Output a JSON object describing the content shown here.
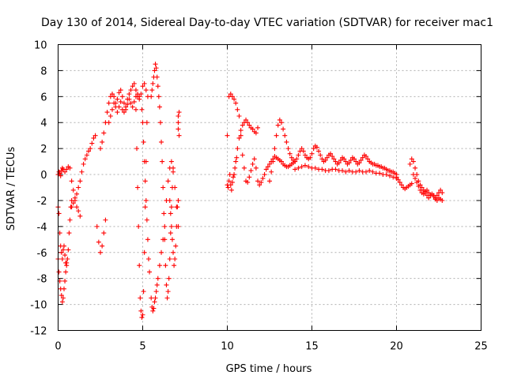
{
  "chart_data": {
    "type": "scatter",
    "title": "Day 130 of 2014, Sidereal Day-to-day VTEC variation (SDTVAR) for receiver mac1",
    "xlabel": "GPS time / hours",
    "ylabel": "SDTVAR / TECUs",
    "xlim": [
      0,
      25
    ],
    "ylim": [
      -12,
      10
    ],
    "xticks": [
      0,
      5,
      10,
      15,
      20,
      25
    ],
    "yticks": [
      -12,
      -10,
      -8,
      -6,
      -4,
      -2,
      0,
      2,
      4,
      6,
      8,
      10
    ],
    "xtick_labels": [
      "0",
      "5",
      "10",
      "15",
      "20",
      "25"
    ],
    "ytick_labels": [
      "-12",
      "-10",
      "-8",
      "-6",
      "-4",
      "-2",
      "0",
      "2",
      "4",
      "6",
      "8",
      "10"
    ],
    "grid": true,
    "marker": "plus",
    "color": "#ff0000",
    "series": [
      {
        "name": "SDTVAR",
        "x": [
          0.0,
          0.05,
          0.1,
          0.15,
          0.2,
          0.25,
          0.3,
          0.35,
          0.4,
          0.45,
          0.5,
          0.55,
          0.6,
          0.65,
          0.7,
          0.75,
          0.8,
          0.0,
          0.05,
          0.1,
          0.15,
          0.2,
          0.25,
          0.3,
          0.35,
          0.4,
          0.45,
          0.5,
          0.0,
          0.05,
          0.1,
          0.15,
          0.2,
          0.25,
          0.3,
          0.4,
          0.5,
          0.6,
          0.7,
          0.8,
          0.9,
          1.0,
          1.1,
          1.2,
          1.3,
          0.8,
          0.9,
          1.0,
          1.1,
          1.2,
          1.3,
          1.4,
          1.5,
          1.6,
          1.7,
          1.8,
          1.9,
          2.0,
          2.1,
          2.2,
          2.3,
          2.4,
          2.5,
          2.6,
          2.7,
          2.8,
          2.5,
          2.6,
          2.7,
          2.8,
          2.9,
          3.0,
          3.1,
          3.2,
          3.3,
          3.4,
          3.5,
          3.6,
          3.7,
          3.8,
          3.9,
          4.0,
          4.1,
          4.2,
          4.3,
          4.4,
          4.5,
          4.6,
          4.7,
          4.8,
          4.9,
          5.0,
          5.1,
          5.2,
          3.0,
          3.1,
          3.2,
          3.3,
          3.4,
          3.5,
          3.6,
          3.7,
          3.8,
          3.9,
          4.0,
          4.1,
          4.2,
          4.3,
          4.4,
          4.5,
          4.6,
          4.7,
          4.8,
          4.6,
          4.65,
          4.7,
          4.75,
          4.8,
          4.85,
          4.9,
          4.95,
          5.0,
          5.05,
          5.1,
          5.15,
          5.2,
          5.25,
          5.3,
          4.95,
          5.0,
          5.05,
          5.1,
          5.15,
          5.2,
          5.25,
          5.3,
          5.35,
          5.4,
          5.5,
          5.55,
          5.6,
          5.65,
          5.7,
          5.75,
          5.8,
          5.85,
          5.9,
          5.95,
          6.0,
          6.05,
          6.1,
          6.15,
          6.2,
          6.25,
          6.3,
          6.35,
          6.4,
          6.45,
          6.5,
          6.55,
          6.6,
          6.65,
          6.7,
          6.75,
          6.8,
          5.5,
          5.55,
          5.6,
          5.65,
          5.7,
          5.75,
          5.8,
          5.85,
          5.9,
          6.0,
          6.1,
          6.2,
          6.3,
          6.4,
          6.5,
          6.6,
          6.7,
          6.8,
          6.9,
          7.0,
          7.1,
          6.6,
          6.65,
          6.7,
          6.75,
          6.8,
          6.85,
          6.9,
          6.95,
          7.0,
          7.05,
          7.1,
          7.1,
          7.1,
          7.1,
          7.15,
          7.15,
          10.0,
          10.05,
          10.1,
          10.15,
          10.2,
          10.25,
          10.3,
          10.35,
          10.4,
          10.45,
          10.5,
          10.55,
          10.6,
          10.7,
          10.8,
          10.9,
          11.0,
          11.1,
          11.2,
          11.3,
          11.4,
          11.5,
          11.6,
          11.7,
          11.8,
          10.0,
          10.1,
          10.2,
          10.3,
          10.4,
          10.5,
          10.6,
          10.7,
          10.8,
          10.9,
          11.0,
          11.1,
          11.2,
          11.3,
          11.4,
          11.5,
          11.6,
          11.7,
          11.8,
          11.9,
          12.0,
          12.1,
          12.2,
          12.3,
          12.4,
          12.5,
          12.6,
          12.7,
          12.8,
          12.9,
          13.0,
          13.1,
          13.2,
          13.3,
          13.4,
          13.5,
          13.6,
          13.7,
          13.8,
          13.9,
          14.0,
          12.5,
          12.6,
          12.7,
          12.8,
          12.9,
          13.0,
          13.1,
          13.2,
          13.3,
          13.4,
          13.5,
          13.6,
          13.7,
          13.8,
          13.9,
          14.0,
          14.1,
          14.2,
          14.3,
          14.4,
          14.5,
          14.6,
          14.7,
          14.8,
          14.9,
          15.0,
          15.1,
          15.2,
          15.3,
          15.4,
          15.5,
          15.6,
          15.7,
          15.8,
          15.9,
          16.0,
          16.1,
          16.2,
          16.3,
          16.4,
          16.5,
          16.6,
          16.7,
          16.8,
          16.9,
          17.0,
          17.1,
          17.2,
          17.3,
          17.4,
          17.5,
          17.6,
          17.7,
          17.8,
          17.9,
          18.0,
          18.1,
          18.2,
          18.3,
          18.4,
          18.5,
          18.6,
          18.7,
          18.8,
          18.9,
          19.0,
          19.1,
          19.2,
          19.3,
          19.4,
          19.5,
          19.6,
          19.7,
          19.8,
          19.9,
          20.0,
          14.0,
          14.2,
          14.4,
          14.6,
          14.8,
          15.0,
          15.2,
          15.4,
          15.6,
          15.8,
          16.0,
          16.2,
          16.4,
          16.6,
          16.8,
          17.0,
          17.2,
          17.4,
          17.6,
          17.8,
          18.0,
          18.2,
          18.4,
          18.6,
          18.8,
          19.0,
          19.2,
          19.4,
          19.6,
          19.8,
          20.0,
          20.0,
          20.1,
          20.2,
          20.3,
          20.4,
          20.5,
          20.6,
          20.7,
          20.8,
          20.9,
          21.0,
          21.1,
          21.2,
          21.3,
          21.4,
          21.5,
          21.6,
          21.7,
          21.8,
          21.9,
          22.0,
          22.1,
          22.2,
          22.3,
          22.4,
          22.5,
          22.6,
          22.7,
          20.8,
          20.9,
          21.0,
          21.1,
          21.2,
          21.3,
          21.4,
          21.5,
          21.6,
          21.7,
          21.8,
          21.9,
          22.0,
          22.1,
          22.2,
          22.3,
          22.4,
          22.5,
          22.6,
          22.7
        ],
        "y": [
          -2.5,
          -3.0,
          -4.5,
          -5.5,
          -6.0,
          -6.5,
          -5.8,
          -5.5,
          -6.2,
          -6.8,
          -7.0,
          -6.5,
          -5.8,
          -4.5,
          -3.5,
          -2.5,
          -2.0,
          -6.5,
          -7.5,
          -8.2,
          -8.8,
          -9.3,
          -9.8,
          -9.5,
          -8.8,
          -8.2,
          -7.5,
          -6.8,
          0.0,
          0.2,
          0.1,
          -0.1,
          0.3,
          0.5,
          0.4,
          0.2,
          0.4,
          0.6,
          0.5,
          -0.5,
          -1.2,
          -2.0,
          -2.5,
          -2.8,
          -3.2,
          -2.5,
          -2.2,
          -1.8,
          -1.5,
          -1.0,
          -0.5,
          0.2,
          0.8,
          1.2,
          1.5,
          1.8,
          2.0,
          2.4,
          2.8,
          3.0,
          -4.0,
          -5.2,
          -6.0,
          -5.5,
          -4.5,
          -3.5,
          2.0,
          2.5,
          3.2,
          4.0,
          4.8,
          5.5,
          6.0,
          6.2,
          6.0,
          5.5,
          5.8,
          6.3,
          6.5,
          6.0,
          5.5,
          5.2,
          5.8,
          6.2,
          6.5,
          6.8,
          7.0,
          6.5,
          6.0,
          5.8,
          6.2,
          6.8,
          7.0,
          6.5,
          4.0,
          4.5,
          5.0,
          5.5,
          5.2,
          4.8,
          5.2,
          5.6,
          5.0,
          4.8,
          5.0,
          5.4,
          5.8,
          5.5,
          5.2,
          5.6,
          6.0,
          6.2,
          6.0,
          5.0,
          2.0,
          -1.0,
          -4.0,
          -7.0,
          -9.5,
          -10.5,
          -11.0,
          -10.8,
          -9.0,
          -6.0,
          -2.5,
          1.0,
          4.0,
          6.0,
          5.0,
          4.0,
          2.5,
          1.0,
          -0.5,
          -2.0,
          -3.5,
          -5.0,
          -6.5,
          -7.5,
          6.0,
          6.5,
          7.0,
          7.5,
          8.0,
          8.5,
          8.2,
          7.5,
          6.8,
          6.0,
          5.2,
          4.0,
          2.5,
          1.0,
          -1.0,
          -3.0,
          -5.0,
          -7.0,
          -8.5,
          -9.5,
          -9.0,
          -8.0,
          -6.5,
          -4.5,
          -2.5,
          -1.0,
          0.2,
          -9.5,
          -10.2,
          -10.5,
          -10.3,
          -9.8,
          -9.5,
          -9.0,
          -8.5,
          -8.0,
          -7.0,
          -6.0,
          -5.0,
          -4.0,
          -2.0,
          -0.5,
          0.5,
          1.0,
          0.5,
          -1.0,
          -2.5,
          -4.0,
          -2.0,
          -3.0,
          -4.0,
          -5.0,
          -6.0,
          -7.0,
          -6.5,
          -5.5,
          -4.0,
          -2.5,
          -2.0,
          4.5,
          4.0,
          3.5,
          4.8,
          3.0,
          -0.8,
          -1.0,
          -0.5,
          0.0,
          -0.8,
          -1.2,
          -0.6,
          -0.2,
          0.0,
          0.5,
          1.0,
          1.3,
          2.0,
          2.8,
          3.4,
          3.8,
          4.0,
          4.2,
          4.0,
          3.8,
          3.6,
          3.5,
          3.3,
          3.2,
          3.6,
          3.0,
          6.0,
          6.2,
          6.0,
          5.8,
          5.5,
          5.0,
          4.5,
          3.0,
          1.5,
          0.5,
          -0.5,
          -0.6,
          -0.2,
          0.3,
          0.8,
          1.2,
          0.5,
          -0.5,
          -0.8,
          -0.6,
          -0.3,
          0.0,
          0.4,
          0.6,
          0.8,
          1.0,
          1.2,
          1.4,
          1.3,
          1.2,
          1.1,
          1.0,
          0.8,
          0.7,
          0.6,
          0.6,
          0.7,
          0.8,
          0.9,
          1.0,
          -0.5,
          0.2,
          1.0,
          2.0,
          3.0,
          3.8,
          4.2,
          4.0,
          3.5,
          3.0,
          2.5,
          2.0,
          1.6,
          1.3,
          1.1,
          1.0,
          1.2,
          1.5,
          1.8,
          2.0,
          1.8,
          1.5,
          1.3,
          1.2,
          1.3,
          1.6,
          2.0,
          2.2,
          2.1,
          1.8,
          1.5,
          1.2,
          1.0,
          1.1,
          1.3,
          1.5,
          1.6,
          1.4,
          1.2,
          1.0,
          0.8,
          0.9,
          1.1,
          1.3,
          1.2,
          1.0,
          0.8,
          0.9,
          1.1,
          1.3,
          1.2,
          1.0,
          0.8,
          0.9,
          1.1,
          1.3,
          1.5,
          1.4,
          1.2,
          1.0,
          0.9,
          0.8,
          0.8,
          0.7,
          0.7,
          0.6,
          0.6,
          0.5,
          0.5,
          0.4,
          0.3,
          0.3,
          0.2,
          0.2,
          0.1,
          0.0,
          0.4,
          0.5,
          0.6,
          0.7,
          0.6,
          0.5,
          0.5,
          0.4,
          0.4,
          0.3,
          0.3,
          0.4,
          0.4,
          0.3,
          0.3,
          0.2,
          0.3,
          0.2,
          0.2,
          0.3,
          0.2,
          0.2,
          0.3,
          0.2,
          0.1,
          0.1,
          0.0,
          0.0,
          -0.1,
          -0.2,
          -0.3,
          -0.2,
          -0.4,
          -0.6,
          -0.8,
          -1.0,
          -1.1,
          -1.0,
          -0.9,
          -0.8,
          -0.7,
          0.0,
          -0.3,
          -0.6,
          -0.9,
          -1.2,
          -1.4,
          -1.5,
          -1.3,
          -1.2,
          -1.4,
          -1.6,
          -1.5,
          -1.6,
          -1.8,
          -1.6,
          -1.4,
          -1.2,
          -1.4,
          0.8,
          1.2,
          1.0,
          0.5,
          0.0,
          -0.5,
          -0.8,
          -1.0,
          -1.2,
          -1.4,
          -1.6,
          -1.8,
          -1.6,
          -1.5,
          -1.7,
          -1.9,
          -2.0,
          -1.8,
          -1.9,
          -2.0
        ]
      }
    ]
  }
}
